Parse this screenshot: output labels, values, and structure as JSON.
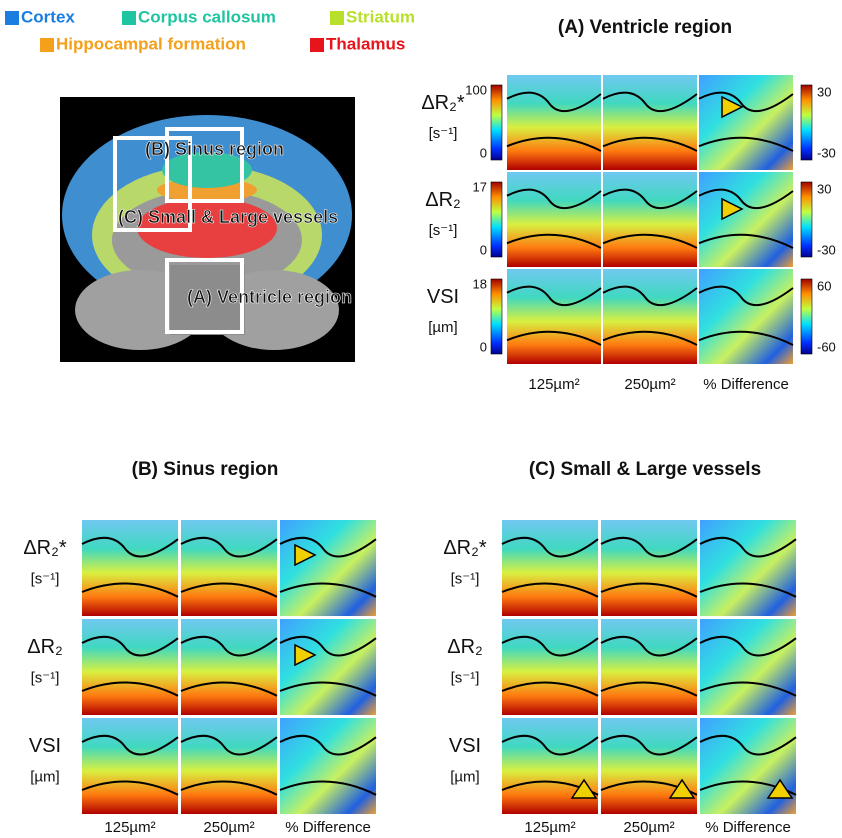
{
  "legend": [
    {
      "label": "Cortex",
      "color": "#1a7ee0"
    },
    {
      "label": "Corpus callosum",
      "color": "#1fc5a0"
    },
    {
      "label": "Striatum",
      "color": "#b8e02a"
    },
    {
      "label": "Hippocampal formation",
      "color": "#f5a01a"
    },
    {
      "label": "Thalamus",
      "color": "#e8141c"
    }
  ],
  "overview": {
    "labels": [
      "(B) Sinus region",
      "(C) Small & Large vessels",
      "(A) Ventricle region"
    ]
  },
  "panels": [
    {
      "title": "(A) Ventricle region",
      "rows": [
        {
          "label": "ΔR₂*",
          "unit": "[s⁻¹]",
          "scale": [
            100,
            0
          ],
          "diff_scale": [
            30,
            -30
          ]
        },
        {
          "label": "ΔR₂",
          "unit": "[s⁻¹]",
          "scale": [
            17,
            0
          ],
          "diff_scale": [
            30,
            -30
          ]
        },
        {
          "label": "VSI",
          "unit": "[µm]",
          "scale": [
            18,
            0
          ],
          "diff_scale": [
            60,
            -60
          ]
        }
      ],
      "columns": [
        "125µm²",
        "250µm²",
        "% Difference"
      ]
    },
    {
      "title": "(B) Sinus region",
      "rows": [
        {
          "label": "ΔR₂*",
          "unit": "[s⁻¹]"
        },
        {
          "label": "ΔR₂",
          "unit": "[s⁻¹]"
        },
        {
          "label": "VSI",
          "unit": "[µm]"
        }
      ],
      "columns": [
        "125µm²",
        "250µm²",
        "% Difference"
      ]
    },
    {
      "title": "(C) Small & Large vessels",
      "rows": [
        {
          "label": "ΔR₂*",
          "unit": "[s⁻¹]"
        },
        {
          "label": "ΔR₂",
          "unit": "[s⁻¹]"
        },
        {
          "label": "VSI",
          "unit": "[µm]"
        }
      ],
      "columns": [
        "125µm²",
        "250µm²",
        "% Difference"
      ]
    }
  ]
}
